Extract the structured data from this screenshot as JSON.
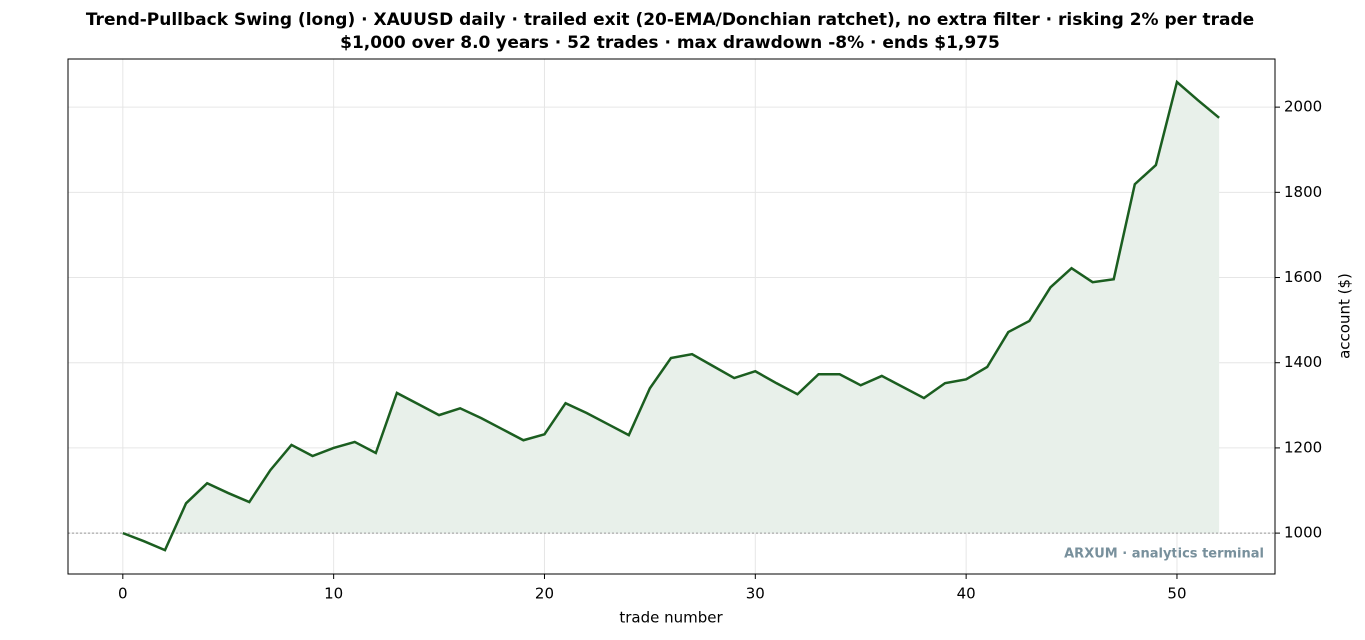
{
  "chart_data": {
    "type": "line",
    "title": "Trend-Pullback Swing (long) · XAUUSD daily · trailed exit (20-EMA/Donchian ratchet), no extra filter · risking 2% per trade",
    "subtitle": "$1,000 over 8.0 years · 52 trades · max drawdown -8% · ends $1,975",
    "x_label": "trade number",
    "y_label": "account ($)",
    "annotation": "ARXUM · analytics terminal",
    "x": [
      0,
      1,
      2,
      3,
      4,
      5,
      6,
      7,
      8,
      9,
      10,
      11,
      12,
      13,
      14,
      15,
      16,
      17,
      18,
      19,
      20,
      21,
      22,
      23,
      24,
      25,
      26,
      27,
      28,
      29,
      30,
      31,
      32,
      33,
      34,
      35,
      36,
      37,
      38,
      39,
      40,
      41,
      42,
      43,
      44,
      45,
      46,
      47,
      48,
      49,
      50,
      51,
      52
    ],
    "series": [
      {
        "name": "account",
        "color": "#1b5e20",
        "fill": "#e8f0ea",
        "values": [
          1000,
          981,
          960,
          1070,
          1117,
          1094,
          1073,
          1148,
          1207,
          1181,
          1200,
          1214,
          1188,
          1329,
          1303,
          1277,
          1293,
          1270,
          1244,
          1218,
          1232,
          1305,
          1282,
          1256,
          1230,
          1340,
          1411,
          1420,
          1392,
          1364,
          1380,
          1352,
          1326,
          1373,
          1373,
          1347,
          1369,
          1343,
          1317,
          1352,
          1361,
          1390,
          1472,
          1498,
          1577,
          1622,
          1589,
          1596,
          1819,
          1864,
          2059,
          2016,
          1975
        ]
      }
    ],
    "reference_line": 1000,
    "xlim": [
      -2.6,
      54.65
    ],
    "ylim": [
      904,
      2113
    ],
    "xticks": [
      0,
      10,
      20,
      30,
      40,
      50
    ],
    "yticks": [
      1000,
      1200,
      1400,
      1600,
      1800,
      2000
    ],
    "y_axis_side": "right",
    "grid": true
  }
}
